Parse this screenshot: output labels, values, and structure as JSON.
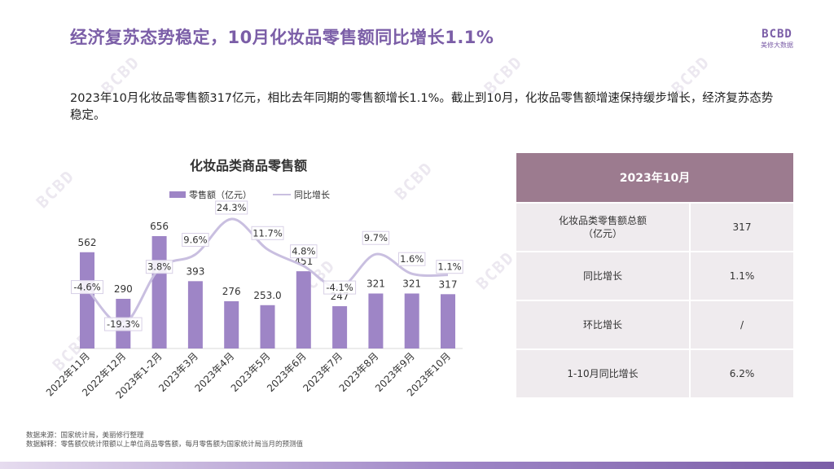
{
  "header": {
    "title": "经济复苏态势稳定，10月化妆品零售额同比增长1.1%",
    "logo_mark": "BCBD",
    "logo_sub": "美修大数据"
  },
  "intro": "2023年10月化妆品零售额317亿元，相比去年同期的零售额增长1.1%。截止到10月，化妆品零售额增速保持缓步增长，经济复苏态势稳定。",
  "chart_data": {
    "type": "bar",
    "title": "化妆品类商品零售额",
    "categories": [
      "2022年11月",
      "2022年12月",
      "2023年1-2月",
      "2023年3月",
      "2023年4月",
      "2023年5月",
      "2023年6月",
      "2023年7月",
      "2023年8月",
      "2023年9月",
      "2023年10月"
    ],
    "series": [
      {
        "name": "零售额（亿元）",
        "kind": "bar",
        "values": [
          562,
          290,
          656,
          393,
          276,
          253.0,
          451,
          247,
          321,
          321,
          317
        ],
        "labels": [
          "562",
          "290",
          "656",
          "393",
          "276",
          "253.0",
          "451",
          "247",
          "321",
          "321",
          "317"
        ]
      },
      {
        "name": "同比增长",
        "kind": "line",
        "values": [
          -4.6,
          -19.3,
          3.8,
          9.6,
          24.3,
          11.7,
          4.8,
          -4.1,
          9.7,
          1.6,
          1.1
        ],
        "labels": [
          "-4.6%",
          "-19.3%",
          "3.8%",
          "9.6%",
          "24.3%",
          "11.7%",
          "4.8%",
          "-4.1%",
          "9.7%",
          "1.6%",
          "1.1%"
        ]
      }
    ],
    "ylim_bar": [
      0,
      700
    ],
    "ylim_line": [
      -25,
      28
    ],
    "bar_color": "#9e85c6",
    "line_color": "#c9bfe0"
  },
  "table": {
    "header": "2023年10月",
    "rows": [
      {
        "label": "化妆品类零售额总额\n（亿元）",
        "value": "317"
      },
      {
        "label": "同比增长",
        "value": "1.1%"
      },
      {
        "label": "环比增长",
        "value": "/"
      },
      {
        "label": "1-10月同比增长",
        "value": "6.2%"
      }
    ]
  },
  "footer": {
    "source": "数据来源：国家统计局，美丽修行整理",
    "note": "数据解释：零售额仅统计限额以上单位商品零售额，每月零售额为国家统计局当月的预测值"
  }
}
